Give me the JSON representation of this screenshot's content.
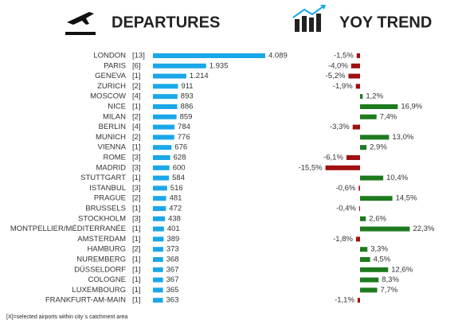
{
  "chart_data": [
    {
      "type": "hbar",
      "title": "DEPARTURES",
      "categories": [
        "LONDON",
        "PARIS",
        "GENEVA",
        "ZURICH",
        "MOSCOW",
        "NICE",
        "MILAN",
        "BERLIN",
        "MUNICH",
        "VIENNA",
        "ROME",
        "MADRID",
        "STUTTGART",
        "ISTANBUL",
        "PRAGUE",
        "BRUSSELS",
        "STOCKHOLM",
        "MONTPELLIER/MÉDITERRANÉE",
        "AMSTERDAM",
        "HAMBURG",
        "NUREMBERG",
        "DÜSSELDORF",
        "COLOGNE",
        "LUXEMBOURG",
        "FRANKFURT-AM-MAIN"
      ],
      "airport_counts": [
        "[13]",
        "[6]",
        "[1]",
        "[2]",
        "[4]",
        "[1]",
        "[2]",
        "[4]",
        "[2]",
        "[1]",
        "[3]",
        "[3]",
        "[1]",
        "[3]",
        "[2]",
        "[1]",
        "[3]",
        "[1]",
        "[1]",
        "[2]",
        "[1]",
        "[1]",
        "[1]",
        "[1]",
        "[1]"
      ],
      "values": [
        4089,
        1935,
        1214,
        911,
        893,
        886,
        859,
        784,
        776,
        676,
        628,
        600,
        584,
        516,
        481,
        472,
        438,
        401,
        389,
        373,
        368,
        367,
        367,
        365,
        363
      ],
      "value_labels": [
        "4.089",
        "1.935",
        "1.214",
        "911",
        "893",
        "886",
        "859",
        "784",
        "776",
        "676",
        "628",
        "600",
        "584",
        "516",
        "481",
        "472",
        "438",
        "401",
        "389",
        "373",
        "368",
        "367",
        "367",
        "365",
        "363"
      ],
      "color": "#1aa7e8"
    },
    {
      "type": "diverging",
      "title": "YOY TREND",
      "values": [
        -1.5,
        -4.0,
        -5.2,
        -1.9,
        1.2,
        16.9,
        7.4,
        -3.3,
        13.0,
        2.9,
        -6.1,
        -15.5,
        10.4,
        -0.6,
        14.5,
        -0.4,
        2.6,
        22.3,
        -1.8,
        3.3,
        4.5,
        12.6,
        8.3,
        7.7,
        -1.1
      ],
      "value_labels": [
        "-1,5%",
        "-4,0%",
        "-5,2%",
        "-1,9%",
        "1,2%",
        "16,9%",
        "7,4%",
        "-3,3%",
        "13,0%",
        "2,9%",
        "-6,1%",
        "-15,5%",
        "10,4%",
        "-0,6%",
        "14,5%",
        "-0,4%",
        "2,6%",
        "22,3%",
        "-1,8%",
        "3,3%",
        "4,5%",
        "12,6%",
        "8,3%",
        "7,7%",
        "-1,1%"
      ],
      "positive_color": "#1e7a1e",
      "negative_color": "#a01010"
    }
  ],
  "footnote": "[X]=selected airports within city´s catchment area"
}
